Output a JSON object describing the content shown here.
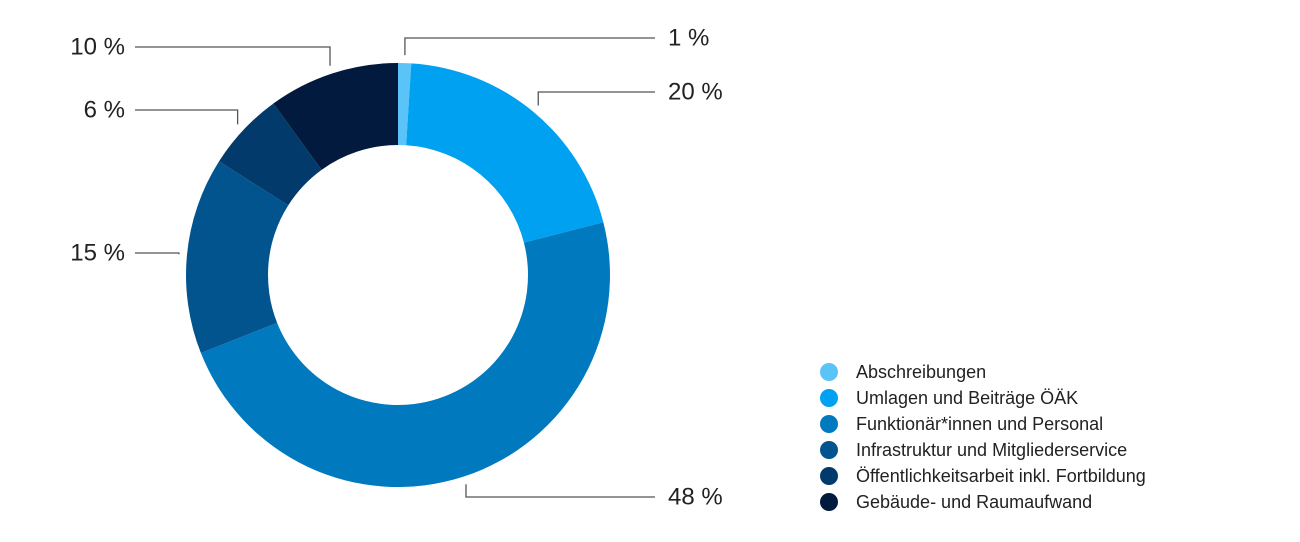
{
  "chart_data": {
    "type": "donut",
    "categories": [
      "Abschreibungen",
      "Umlagen und Beiträge ÖÄK",
      "Funktionär*innen und Personal",
      "Infrastruktur und Mitgliederservice",
      "Öffentlichkeitsarbeit inkl. Fortbildung",
      "Gebäude- und Raumaufwand"
    ],
    "values": [
      1,
      20,
      48,
      15,
      6,
      10
    ],
    "value_labels": [
      "1 %",
      "20 %",
      "48 %",
      "15 %",
      "6 %",
      "10 %"
    ],
    "colors": [
      "#5ac3f8",
      "#00a1f1",
      "#0179bf",
      "#02548f",
      "#033a6c",
      "#021a3d"
    ]
  }
}
